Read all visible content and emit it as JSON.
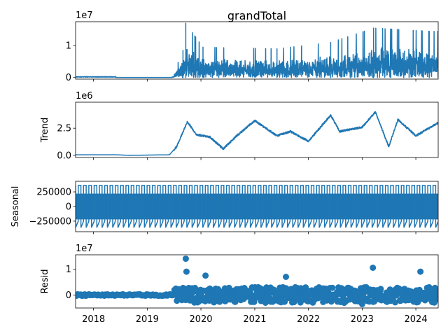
{
  "chart_data": {
    "type": "line",
    "title": "grandTotal",
    "x_axis": {
      "type": "date",
      "range": [
        "2017-09-01",
        "2024-06-01"
      ],
      "tick_labels": [
        "2018",
        "2019",
        "2020",
        "2021",
        "2022",
        "2023",
        "2024"
      ]
    },
    "series_color": "#1f77b4",
    "grid": false,
    "panels": [
      {
        "name": "observed",
        "ylabel": "",
        "offset_label": "1e7",
        "ylim": [
          -0.05,
          1.75
        ],
        "yticks": [
          0,
          1
        ],
        "ytick_labels": [
          "0",
          "1"
        ],
        "style": "line",
        "key_points": [
          {
            "x": "2017-10-01",
            "y": 0.02
          },
          {
            "x": "2019-06-01",
            "y": 0.01
          },
          {
            "x": "2019-07-01",
            "y": 0.15
          },
          {
            "x": "2019-09-01",
            "y": 0.85
          },
          {
            "x": "2019-09-20",
            "y": 1.7
          },
          {
            "x": "2020-01-15",
            "y": 0.95
          },
          {
            "x": "2021-06-01",
            "y": 0.9
          },
          {
            "x": "2022-06-01",
            "y": 1.1
          },
          {
            "x": "2023-03-20",
            "y": 1.55
          },
          {
            "x": "2024-04-01",
            "y": 1.45
          }
        ]
      },
      {
        "name": "trend",
        "ylabel": "Trend",
        "offset_label": "1e6",
        "ylim": [
          -0.2,
          4.9
        ],
        "yticks": [
          0,
          2.5
        ],
        "ytick_labels": [
          "0.0",
          "2.5"
        ],
        "style": "line",
        "key_points": [
          {
            "x": "2017-09-01",
            "y": 0.05
          },
          {
            "x": "2018-06-01",
            "y": 0.05
          },
          {
            "x": "2018-09-01",
            "y": 0.0
          },
          {
            "x": "2019-06-01",
            "y": 0.05
          },
          {
            "x": "2019-07-20",
            "y": 0.8
          },
          {
            "x": "2019-10-01",
            "y": 3.1
          },
          {
            "x": "2019-12-01",
            "y": 1.9
          },
          {
            "x": "2020-03-01",
            "y": 1.7
          },
          {
            "x": "2020-06-01",
            "y": 0.6
          },
          {
            "x": "2020-09-01",
            "y": 1.8
          },
          {
            "x": "2021-01-01",
            "y": 3.2
          },
          {
            "x": "2021-06-01",
            "y": 1.8
          },
          {
            "x": "2021-09-01",
            "y": 2.2
          },
          {
            "x": "2022-01-01",
            "y": 1.3
          },
          {
            "x": "2022-06-01",
            "y": 3.7
          },
          {
            "x": "2022-08-01",
            "y": 2.2
          },
          {
            "x": "2023-01-01",
            "y": 2.6
          },
          {
            "x": "2023-04-01",
            "y": 4.0
          },
          {
            "x": "2023-07-01",
            "y": 0.8
          },
          {
            "x": "2023-09-01",
            "y": 3.3
          },
          {
            "x": "2024-01-01",
            "y": 1.8
          },
          {
            "x": "2024-06-01",
            "y": 3.0
          }
        ]
      },
      {
        "name": "seasonal",
        "ylabel": "Seasonal",
        "offset_label": "",
        "ylim": [
          -430000,
          430000
        ],
        "yticks": [
          250000,
          0,
          -250000
        ],
        "ytick_labels": [
          "250000",
          "0",
          "−250000"
        ],
        "style": "oscillation",
        "amplitude": [
          -360000,
          360000
        ],
        "period_days": 36
      },
      {
        "name": "resid",
        "ylabel": "Resid",
        "offset_label": "1e7",
        "ylim": [
          -0.5,
          1.55
        ],
        "yticks": [
          0,
          1
        ],
        "ytick_labels": [
          "0",
          "1"
        ],
        "style": "scatter",
        "key_points": [
          {
            "x": "2019-09-20",
            "y": 1.4
          },
          {
            "x": "2019-09-25",
            "y": 0.9
          },
          {
            "x": "2020-02-01",
            "y": 0.75
          },
          {
            "x": "2021-08-01",
            "y": 0.7
          },
          {
            "x": "2023-03-15",
            "y": 1.05
          },
          {
            "x": "2024-02-01",
            "y": 0.9
          },
          {
            "x": "2022-09-01",
            "y": -0.3
          },
          {
            "x": "2023-01-01",
            "y": -0.35
          }
        ]
      }
    ]
  }
}
